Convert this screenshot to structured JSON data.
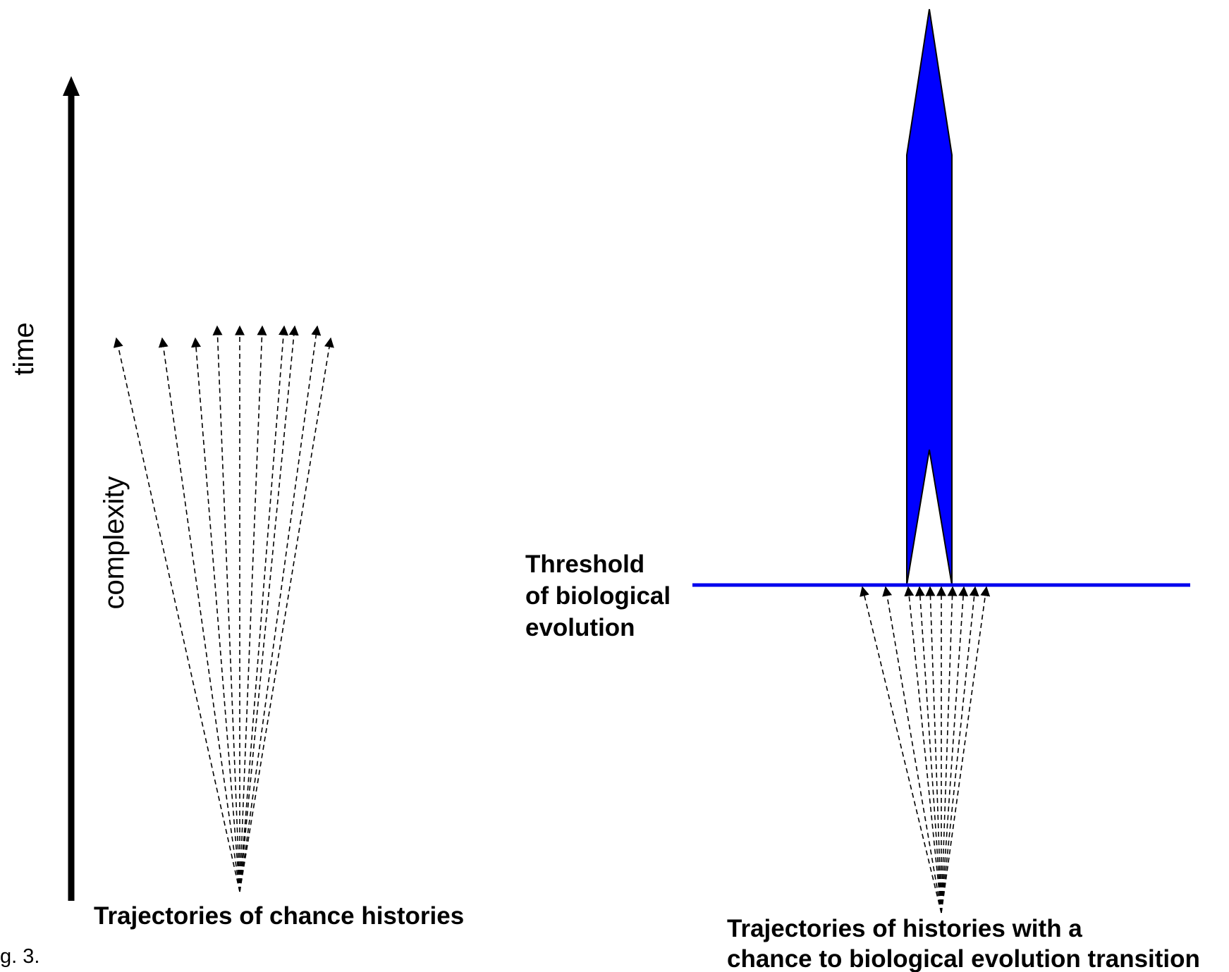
{
  "axis": {
    "time_label": "time",
    "complexity_label": "complexity"
  },
  "left_panel": {
    "caption": "Trajectories of chance histories",
    "trajectory_count": 10
  },
  "right_panel": {
    "threshold_lines": [
      "Threshold",
      "of biological",
      "evolution"
    ],
    "caption_lines": [
      "Trajectories of histories with a",
      "chance to biological evolution transition"
    ],
    "trajectory_count": 10
  },
  "figure_label": "g. 3.",
  "colors": {
    "threshold": "#0000ee",
    "evolution_shape": "#0000ff",
    "ink": "#000000"
  }
}
